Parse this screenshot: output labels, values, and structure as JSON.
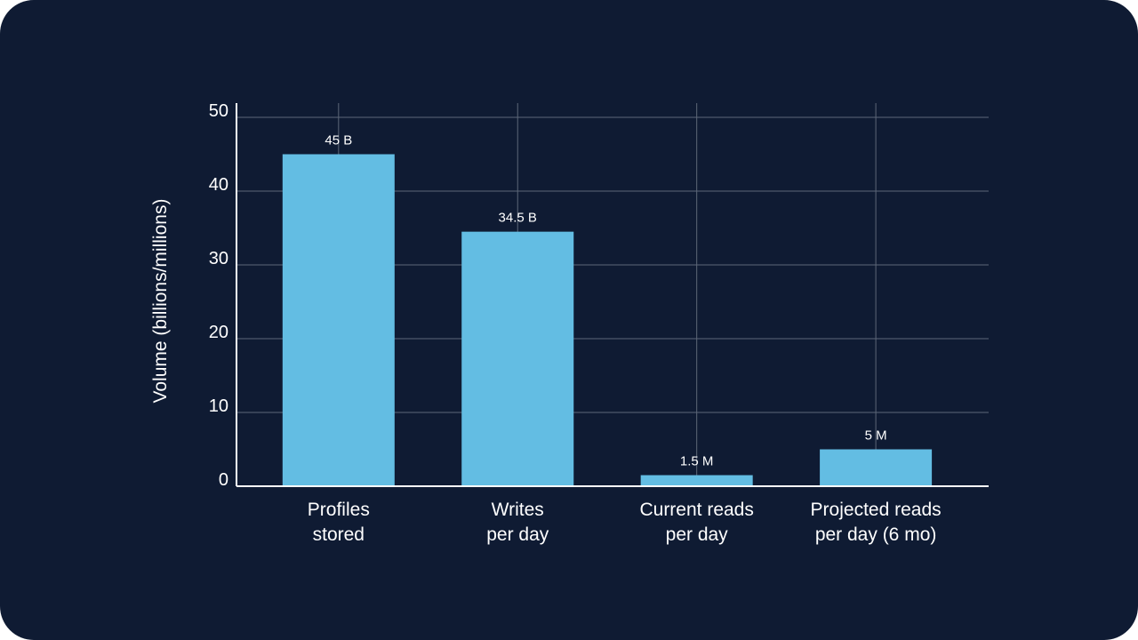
{
  "theme": {
    "background": "#0f1b33",
    "bar_color": "#63bde3",
    "grid_color": "#5d6778",
    "axis_color": "#ffffff",
    "text_color": "#ffffff"
  },
  "chart_data": {
    "type": "bar",
    "title": "",
    "xlabel": "",
    "ylabel": "Volume (billions/millions)",
    "ylim": [
      0,
      50
    ],
    "yticks": [
      0,
      10,
      20,
      30,
      40,
      50
    ],
    "grid": true,
    "categories": [
      [
        "Profiles",
        "stored"
      ],
      [
        "Writes",
        "per day"
      ],
      [
        "Current reads",
        "per day"
      ],
      [
        "Projected reads",
        "per day (6 mo)"
      ]
    ],
    "values": [
      45,
      34.5,
      1.5,
      5
    ],
    "data_labels": [
      "45 B",
      "34.5 B",
      "1.5 M",
      "5 M"
    ]
  }
}
